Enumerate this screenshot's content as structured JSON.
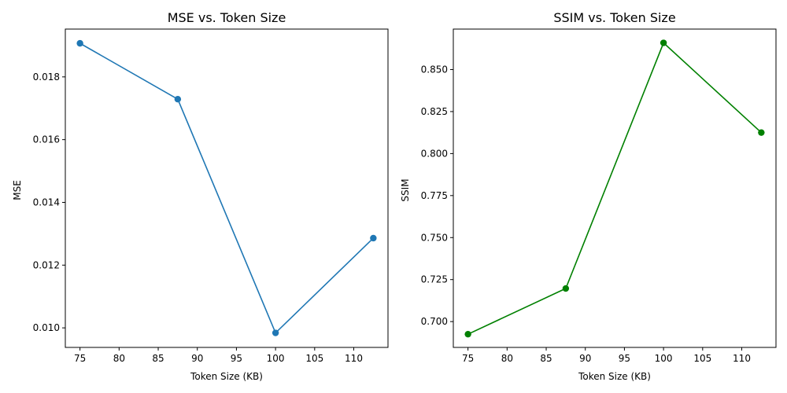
{
  "chart_data": [
    {
      "type": "line",
      "title": "MSE vs. Token Size",
      "xlabel": "Token Size (KB)",
      "ylabel": "MSE",
      "color": "#1f77b4",
      "marker": "circle",
      "x": [
        75,
        87.5,
        100,
        112.5
      ],
      "values": [
        0.01907,
        0.01729,
        0.00984,
        0.01286
      ],
      "xlim": [
        73.125,
        114.375
      ],
      "ylim": [
        0.009377,
        0.019524
      ],
      "xticks": [
        75,
        80,
        85,
        90,
        95,
        100,
        105,
        110
      ],
      "xtick_labels": [
        "75",
        "80",
        "85",
        "90",
        "95",
        "100",
        "105",
        "110"
      ],
      "yticks": [
        0.01,
        0.012,
        0.014,
        0.016,
        0.018
      ],
      "ytick_labels": [
        "0.010",
        "0.012",
        "0.014",
        "0.016",
        "0.018"
      ],
      "grid": false
    },
    {
      "type": "line",
      "title": "SSIM vs. Token Size",
      "xlabel": "Token Size (KB)",
      "ylabel": "SSIM",
      "color": "#008000",
      "marker": "circle",
      "x": [
        75,
        87.5,
        100,
        112.5
      ],
      "values": [
        0.6925,
        0.7197,
        0.8659,
        0.8125
      ],
      "xlim": [
        73.125,
        114.375
      ],
      "ylim": [
        0.684628,
        0.874101
      ],
      "xticks": [
        75,
        80,
        85,
        90,
        95,
        100,
        105,
        110
      ],
      "xtick_labels": [
        "75",
        "80",
        "85",
        "90",
        "95",
        "100",
        "105",
        "110"
      ],
      "yticks": [
        0.7,
        0.725,
        0.75,
        0.775,
        0.8,
        0.825,
        0.85
      ],
      "ytick_labels": [
        "0.700",
        "0.725",
        "0.750",
        "0.775",
        "0.800",
        "0.825",
        "0.850"
      ],
      "grid": false
    }
  ]
}
